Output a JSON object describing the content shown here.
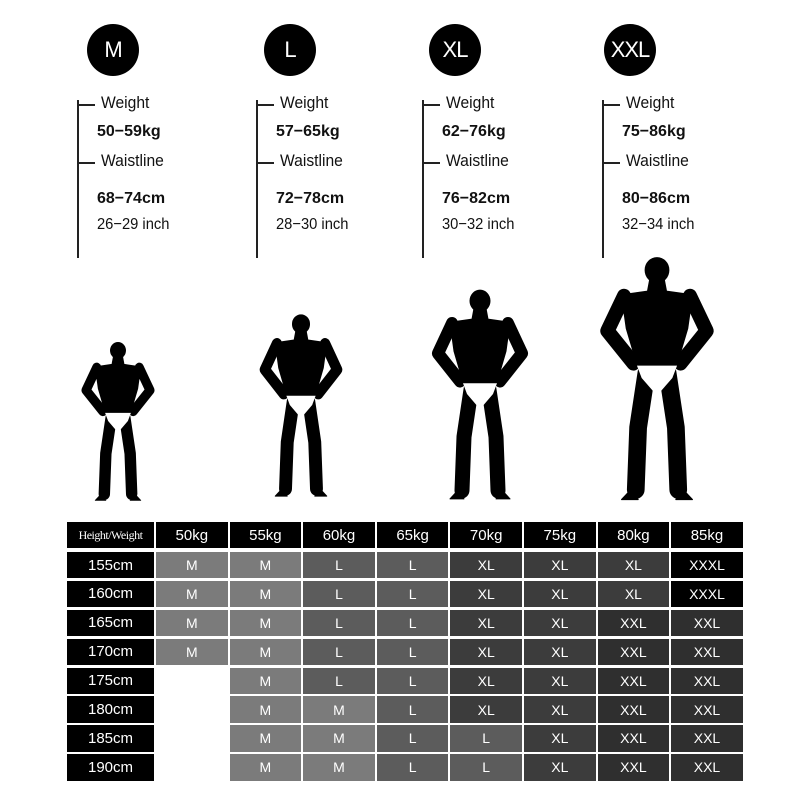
{
  "sizes": [
    {
      "badge": "M",
      "weight_label": "Weight",
      "weight": "50−59kg",
      "waist_label": "Waistline",
      "waist_cm": "68−74cm",
      "waist_inch": "26−29 inch"
    },
    {
      "badge": "L",
      "weight_label": "Weight",
      "weight": "57−65kg",
      "waist_label": "Waistline",
      "waist_cm": "72−78cm",
      "waist_inch": "28−30 inch"
    },
    {
      "badge": "XL",
      "weight_label": "Weight",
      "weight": "62−76kg",
      "waist_label": "Waistline",
      "waist_cm": "76−82cm",
      "waist_inch": "30−32 inch"
    },
    {
      "badge": "XXL",
      "weight_label": "Weight",
      "weight": "75−86kg",
      "waist_label": "Waistline",
      "waist_cm": "80−86cm",
      "waist_inch": "32−34 inch"
    }
  ],
  "table": {
    "corner": "Height/Weight",
    "columns": [
      "50kg",
      "55kg",
      "60kg",
      "65kg",
      "70kg",
      "75kg",
      "80kg",
      "85kg"
    ],
    "rows": [
      {
        "height": "155cm",
        "cells": [
          "M",
          "M",
          "L",
          "L",
          "XL",
          "XL",
          "XL",
          "XXXL"
        ]
      },
      {
        "height": "160cm",
        "cells": [
          "M",
          "M",
          "L",
          "L",
          "XL",
          "XL",
          "XL",
          "XXXL"
        ]
      },
      {
        "height": "165cm",
        "cells": [
          "M",
          "M",
          "L",
          "L",
          "XL",
          "XL",
          "XXL",
          "XXL"
        ]
      },
      {
        "height": "170cm",
        "cells": [
          "M",
          "M",
          "L",
          "L",
          "XL",
          "XL",
          "XXL",
          "XXL"
        ]
      },
      {
        "height": "175cm",
        "cells": [
          "",
          "M",
          "L",
          "L",
          "XL",
          "XL",
          "XXL",
          "XXL"
        ]
      },
      {
        "height": "180cm",
        "cells": [
          "",
          "M",
          "M",
          "L",
          "XL",
          "XL",
          "XXL",
          "XXL"
        ]
      },
      {
        "height": "185cm",
        "cells": [
          "",
          "M",
          "M",
          "L",
          "L",
          "XL",
          "XXL",
          "XXL"
        ]
      },
      {
        "height": "190cm",
        "cells": [
          "",
          "M",
          "M",
          "L",
          "L",
          "XL",
          "XXL",
          "XXL"
        ]
      }
    ],
    "size_colors": {
      "M": "#7b7b7b",
      "L": "#5c5c5c",
      "XL": "#3c3c3c",
      "XXL": "#2f2f2f",
      "XXXL": "#000000"
    }
  }
}
